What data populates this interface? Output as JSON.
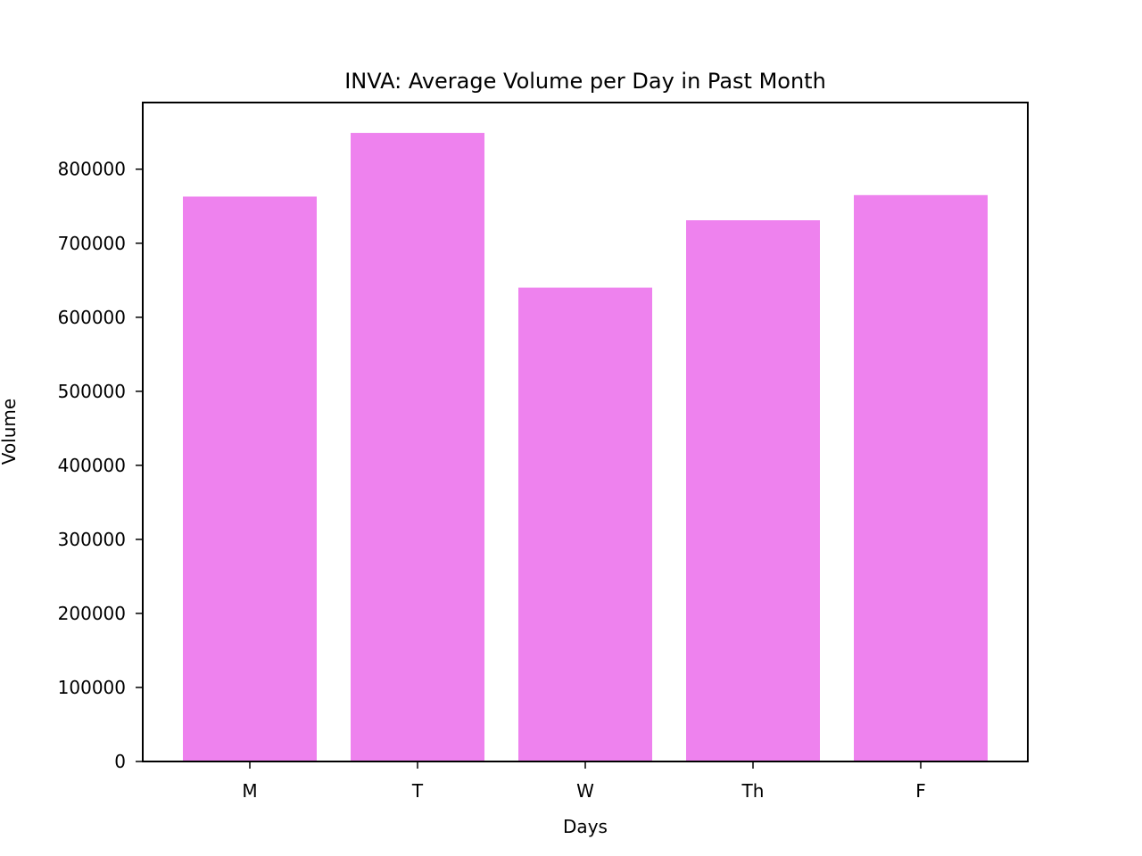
{
  "chart_data": {
    "type": "bar",
    "title": "INVA: Average Volume per Day in Past Month",
    "xlabel": "Days",
    "ylabel": "Volume",
    "categories": [
      "M",
      "T",
      "W",
      "Th",
      "F"
    ],
    "values": [
      763000,
      849000,
      640000,
      731000,
      765000
    ],
    "ylim": [
      0,
      890000
    ],
    "yticks": [
      0,
      100000,
      200000,
      300000,
      400000,
      500000,
      600000,
      700000,
      800000
    ],
    "ytick_labels": [
      "0",
      "100000",
      "200000",
      "300000",
      "400000",
      "500000",
      "600000",
      "700000",
      "800000"
    ],
    "grid": false,
    "bar_color": "#ee82ee"
  }
}
